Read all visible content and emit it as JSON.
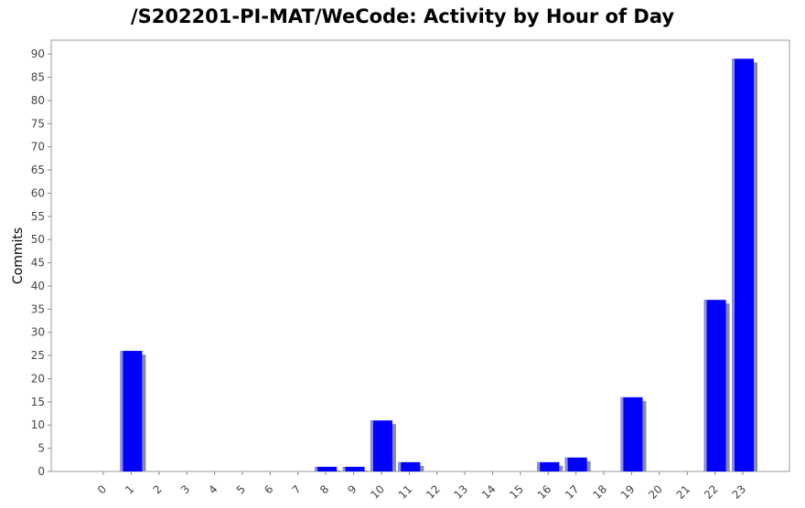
{
  "chart_data": {
    "type": "bar",
    "title": "/S202201-PI-MAT/WeCode: Activity by Hour of Day",
    "xlabel": "",
    "ylabel": "Commits",
    "categories": [
      "0",
      "1",
      "2",
      "3",
      "4",
      "5",
      "6",
      "7",
      "8",
      "9",
      "10",
      "11",
      "12",
      "13",
      "14",
      "15",
      "16",
      "17",
      "18",
      "19",
      "20",
      "21",
      "22",
      "23"
    ],
    "values": [
      0,
      26,
      0,
      0,
      0,
      0,
      0,
      0,
      1,
      1,
      11,
      2,
      0,
      0,
      0,
      0,
      2,
      3,
      0,
      16,
      0,
      0,
      37,
      89
    ],
    "ylim": [
      0,
      93
    ],
    "yticks": [
      0,
      5,
      10,
      15,
      20,
      25,
      30,
      35,
      40,
      45,
      50,
      55,
      60,
      65,
      70,
      75,
      80,
      85,
      90
    ],
    "grid": false,
    "colors": {
      "bar": "#0000ff",
      "bar_highlight": "#8a8aff",
      "bar_shadow": "#8c8c8c",
      "axis": "#888888",
      "tick_text": "#444444"
    }
  }
}
